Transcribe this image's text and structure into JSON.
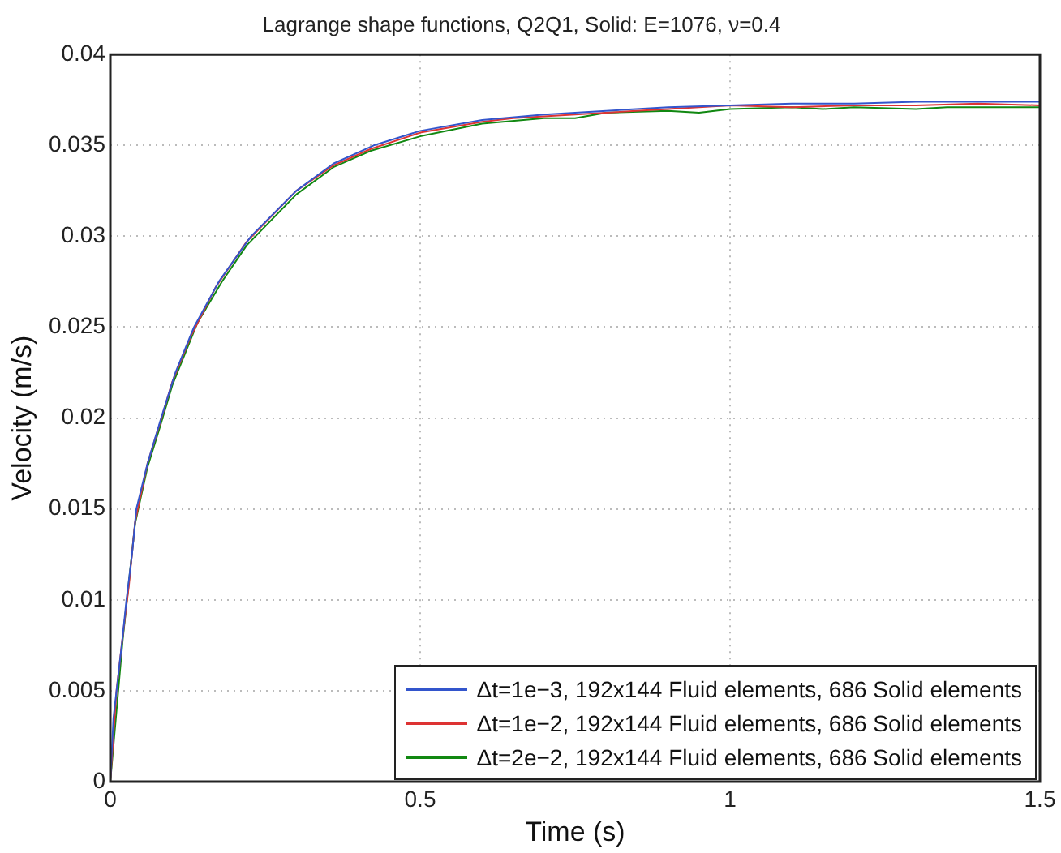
{
  "chart_data": {
    "type": "line",
    "title": "Lagrange shape functions, Q2Q1, Solid: E=1076, ν=0.4",
    "xlabel": "Time (s)",
    "ylabel": "Velocity (m/s)",
    "xlim": [
      0,
      1.5
    ],
    "xticks": [
      0,
      0.5,
      1,
      1.5
    ],
    "ylim": [
      0,
      0.04
    ],
    "yticks": [
      0,
      0.005,
      0.01,
      0.015,
      0.02,
      0.025,
      0.03,
      0.035,
      0.04
    ],
    "grid": true,
    "legend": "bottom right",
    "marker": "none",
    "line_style": "solid",
    "series": [
      {
        "name": "Δt=1e−3, 192x144 Fluid elements, 686 Solid elements",
        "color": "#3355cc",
        "x": [
          0,
          0.005,
          0.01,
          0.02,
          0.026,
          0.035,
          0.042,
          0.06,
          0.082,
          0.105,
          0.135,
          0.175,
          0.227,
          0.3,
          0.36,
          0.425,
          0.5,
          0.6,
          0.7,
          0.8,
          0.9,
          1.0,
          1.1,
          1.2,
          1.3,
          1.4,
          1.5
        ],
        "values": [
          0,
          0.0035,
          0.005,
          0.008,
          0.01,
          0.0125,
          0.015,
          0.0175,
          0.02,
          0.0225,
          0.025,
          0.0275,
          0.03,
          0.0325,
          0.034,
          0.035,
          0.0358,
          0.0364,
          0.0367,
          0.0369,
          0.0371,
          0.0372,
          0.0373,
          0.0373,
          0.0374,
          0.0374,
          0.0374
        ]
      },
      {
        "name": "Δt=1e−2, 192x144 Fluid elements, 686 Solid elements",
        "color": "#dd3333",
        "x": [
          0,
          0.01,
          0.02,
          0.03,
          0.04,
          0.06,
          0.08,
          0.1,
          0.13,
          0.17,
          0.22,
          0.3,
          0.36,
          0.42,
          0.5,
          0.6,
          0.65,
          0.7,
          0.8,
          0.9,
          1.0,
          1.1,
          1.2,
          1.3,
          1.4,
          1.5
        ],
        "values": [
          0,
          0.005,
          0.008,
          0.0108,
          0.0143,
          0.0175,
          0.0197,
          0.022,
          0.0245,
          0.0272,
          0.0297,
          0.0325,
          0.0339,
          0.0348,
          0.0357,
          0.0363,
          0.0365,
          0.0366,
          0.0368,
          0.037,
          0.0372,
          0.0371,
          0.0372,
          0.0372,
          0.0373,
          0.0372
        ]
      },
      {
        "name": "Δt=2e−2, 192x144 Fluid elements, 686 Solid elements",
        "color": "#118811",
        "x": [
          0,
          0.02,
          0.04,
          0.06,
          0.08,
          0.1,
          0.12,
          0.14,
          0.18,
          0.22,
          0.3,
          0.36,
          0.42,
          0.5,
          0.6,
          0.7,
          0.75,
          0.8,
          0.9,
          0.95,
          1.0,
          1.1,
          1.15,
          1.2,
          1.3,
          1.35,
          1.4,
          1.5
        ],
        "values": [
          0,
          0.0078,
          0.0142,
          0.0173,
          0.0195,
          0.0218,
          0.0235,
          0.0252,
          0.0275,
          0.0295,
          0.0323,
          0.0338,
          0.0347,
          0.0355,
          0.0362,
          0.0365,
          0.0365,
          0.0368,
          0.0369,
          0.0368,
          0.037,
          0.0371,
          0.037,
          0.0371,
          0.037,
          0.0371,
          0.0371,
          0.0371
        ]
      }
    ]
  }
}
